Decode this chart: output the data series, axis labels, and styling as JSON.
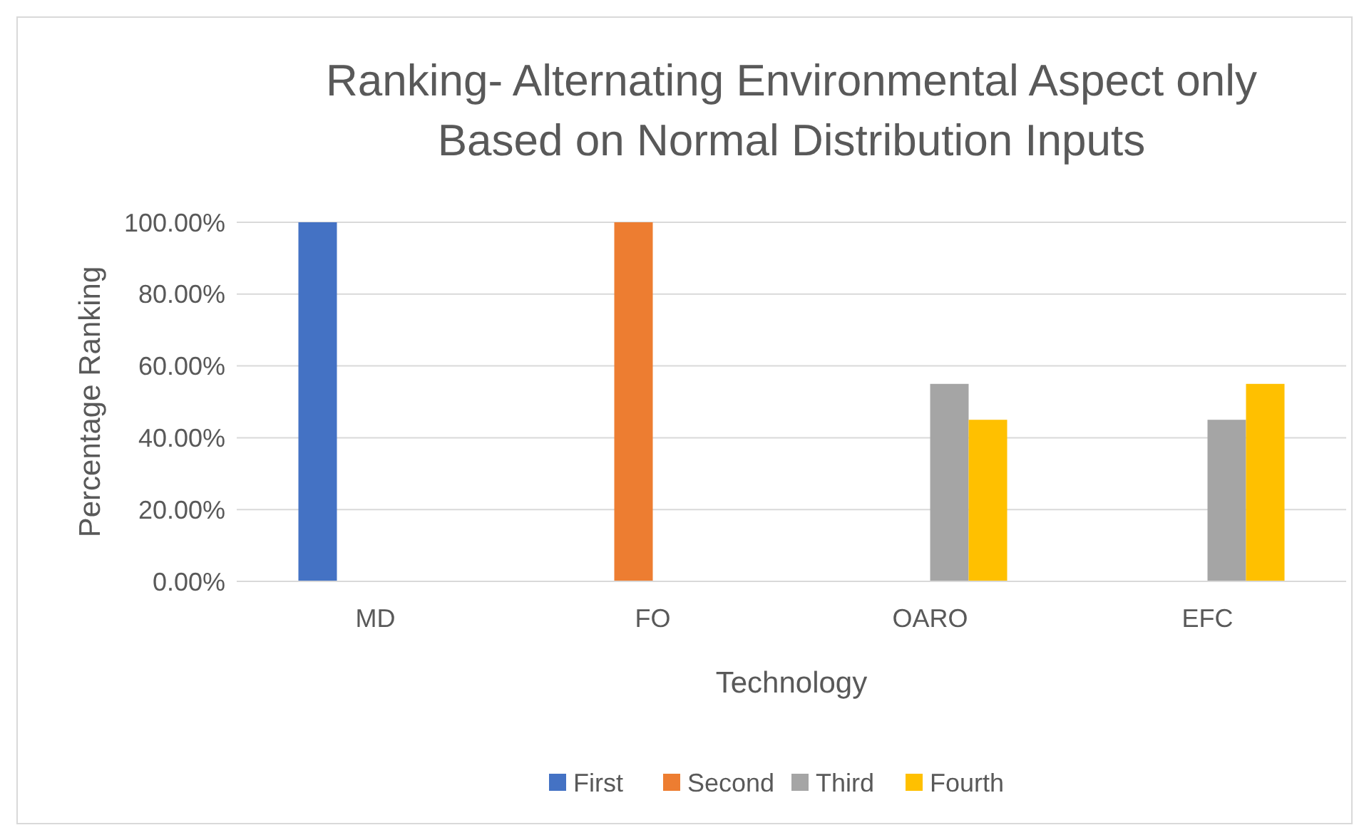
{
  "chart_data": {
    "type": "bar",
    "title": "Ranking- Alternating Environmental Aspect only Based on Normal Distribution Inputs",
    "xlabel": "Technology",
    "ylabel": "Percentage Ranking",
    "categories": [
      "MD",
      "FO",
      "OARO",
      "EFC"
    ],
    "series": [
      {
        "name": "First",
        "color": "#4472c4",
        "values": [
          100,
          0,
          0,
          0
        ]
      },
      {
        "name": "Second",
        "color": "#ed7d31",
        "values": [
          0,
          100,
          0,
          0
        ]
      },
      {
        "name": "Third",
        "color": "#a5a5a5",
        "values": [
          0,
          0,
          55,
          45
        ]
      },
      {
        "name": "Fourth",
        "color": "#ffc000",
        "values": [
          0,
          0,
          45,
          55
        ]
      }
    ],
    "ylim": [
      0,
      100
    ],
    "yticks": [
      {
        "value": 0,
        "label": "0.00%"
      },
      {
        "value": 20,
        "label": "20.00%"
      },
      {
        "value": 40,
        "label": "40.00%"
      },
      {
        "value": 60,
        "label": "60.00%"
      },
      {
        "value": 80,
        "label": "80.00%"
      },
      {
        "value": 100,
        "label": "100.00%"
      }
    ],
    "grid": "y",
    "legend": "bottom"
  }
}
